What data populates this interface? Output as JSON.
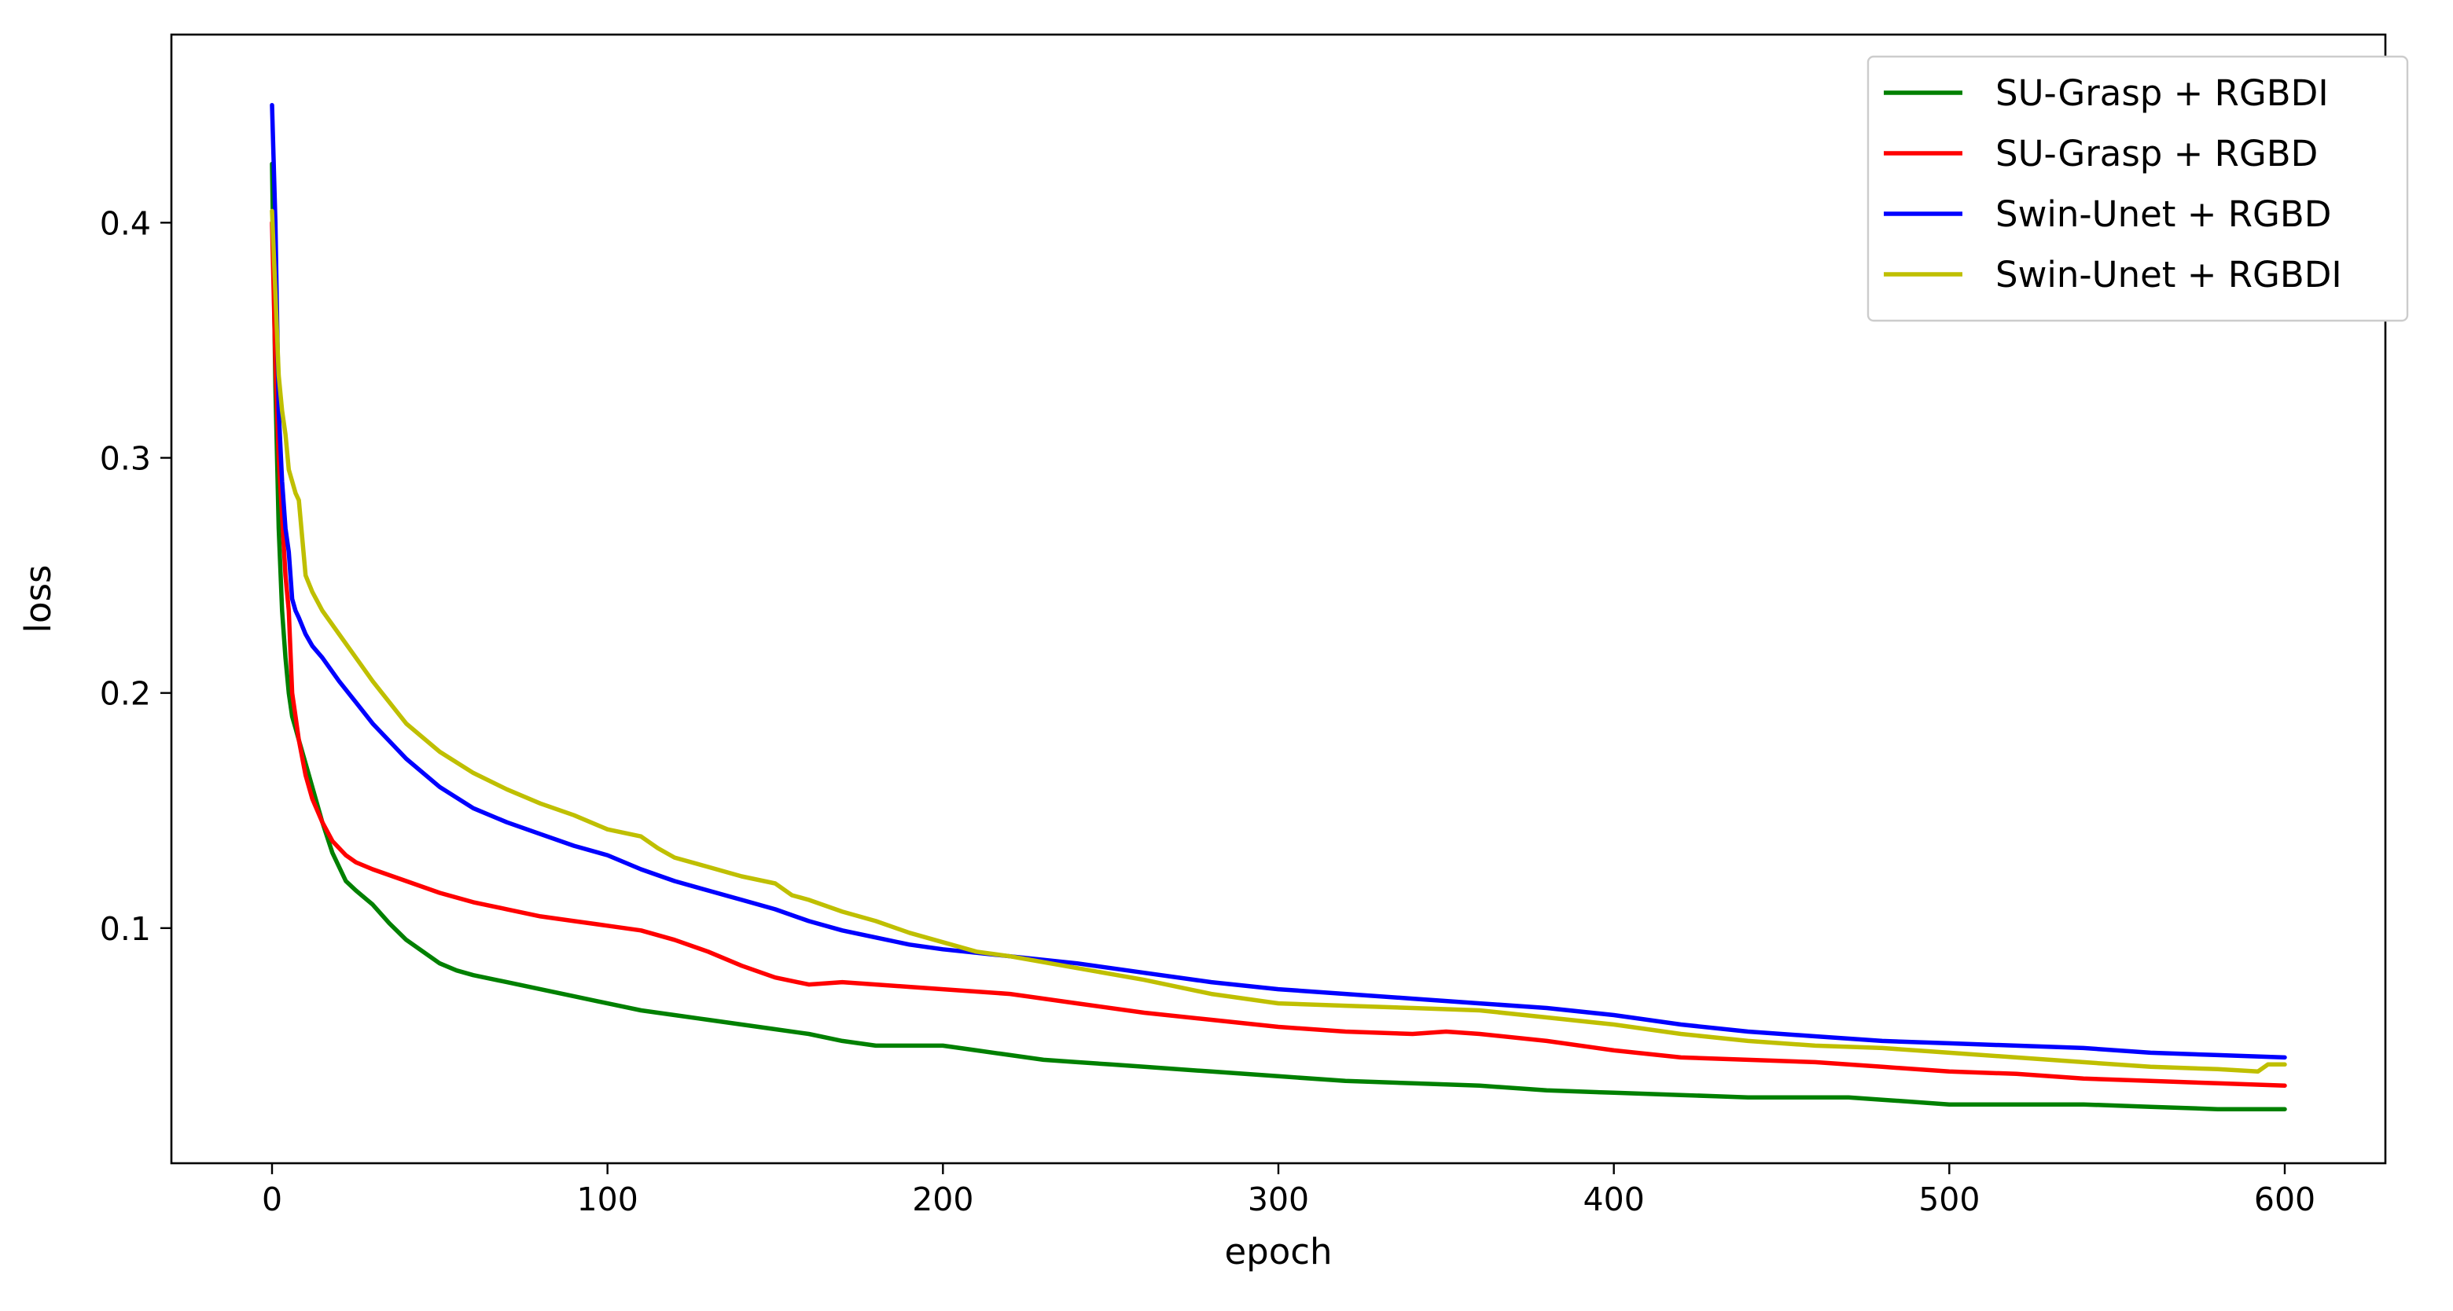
{
  "chart_data": {
    "type": "line",
    "title": "",
    "xlabel": "epoch",
    "ylabel": "loss",
    "xlim": [
      -30,
      630
    ],
    "ylim": [
      0.0,
      0.48
    ],
    "xticks": [
      0,
      100,
      200,
      300,
      400,
      500,
      600
    ],
    "yticks": [
      0.1,
      0.2,
      0.3,
      0.4
    ],
    "grid": false,
    "legend_position": "top-right",
    "series": [
      {
        "name": "SU-Grasp + RGBDI",
        "color": "#008000",
        "x": [
          0,
          1,
          2,
          3,
          4,
          5,
          6,
          7,
          8,
          10,
          12,
          15,
          18,
          22,
          25,
          30,
          35,
          40,
          45,
          50,
          55,
          60,
          70,
          80,
          90,
          100,
          110,
          120,
          130,
          140,
          150,
          160,
          170,
          180,
          190,
          200,
          210,
          220,
          230,
          240,
          250,
          260,
          280,
          300,
          320,
          340,
          360,
          380,
          400,
          420,
          440,
          460,
          470,
          480,
          500,
          520,
          540,
          560,
          580,
          600
        ],
        "y": [
          0.425,
          0.33,
          0.27,
          0.235,
          0.215,
          0.2,
          0.19,
          0.185,
          0.18,
          0.17,
          0.16,
          0.145,
          0.132,
          0.12,
          0.116,
          0.11,
          0.102,
          0.095,
          0.09,
          0.085,
          0.082,
          0.08,
          0.077,
          0.074,
          0.071,
          0.068,
          0.065,
          0.063,
          0.061,
          0.059,
          0.057,
          0.055,
          0.052,
          0.05,
          0.05,
          0.05,
          0.048,
          0.046,
          0.044,
          0.043,
          0.042,
          0.041,
          0.039,
          0.037,
          0.035,
          0.034,
          0.033,
          0.031,
          0.03,
          0.029,
          0.028,
          0.028,
          0.028,
          0.027,
          0.025,
          0.025,
          0.025,
          0.024,
          0.023,
          0.023
        ]
      },
      {
        "name": "SU-Grasp + RGBD",
        "color": "#ff0000",
        "x": [
          0,
          1,
          2,
          3,
          4,
          5,
          6,
          7,
          8,
          10,
          12,
          15,
          18,
          22,
          25,
          30,
          40,
          50,
          60,
          70,
          80,
          90,
          100,
          110,
          120,
          130,
          140,
          150,
          160,
          170,
          180,
          190,
          200,
          220,
          240,
          260,
          280,
          300,
          320,
          340,
          350,
          360,
          380,
          400,
          420,
          440,
          460,
          480,
          500,
          520,
          540,
          560,
          580,
          600
        ],
        "y": [
          0.4,
          0.34,
          0.3,
          0.275,
          0.25,
          0.235,
          0.2,
          0.19,
          0.18,
          0.165,
          0.155,
          0.145,
          0.137,
          0.131,
          0.128,
          0.125,
          0.12,
          0.115,
          0.111,
          0.108,
          0.105,
          0.103,
          0.101,
          0.099,
          0.095,
          0.09,
          0.084,
          0.079,
          0.076,
          0.077,
          0.076,
          0.075,
          0.074,
          0.072,
          0.068,
          0.064,
          0.061,
          0.058,
          0.056,
          0.055,
          0.056,
          0.055,
          0.052,
          0.048,
          0.045,
          0.044,
          0.043,
          0.041,
          0.039,
          0.038,
          0.036,
          0.035,
          0.034,
          0.033
        ]
      },
      {
        "name": "Swin-Unet + RGBD",
        "color": "#0000ff",
        "x": [
          0,
          1,
          2,
          3,
          4,
          5,
          6,
          7,
          8,
          10,
          12,
          15,
          20,
          25,
          30,
          40,
          50,
          60,
          70,
          80,
          90,
          100,
          110,
          120,
          130,
          140,
          150,
          160,
          170,
          180,
          190,
          200,
          220,
          240,
          260,
          280,
          300,
          320,
          340,
          360,
          380,
          400,
          420,
          440,
          460,
          480,
          500,
          520,
          540,
          560,
          580,
          600
        ],
        "y": [
          0.45,
          0.4,
          0.32,
          0.29,
          0.27,
          0.26,
          0.24,
          0.235,
          0.232,
          0.225,
          0.22,
          0.215,
          0.205,
          0.196,
          0.187,
          0.172,
          0.16,
          0.151,
          0.145,
          0.14,
          0.135,
          0.131,
          0.125,
          0.12,
          0.116,
          0.112,
          0.108,
          0.103,
          0.099,
          0.096,
          0.093,
          0.091,
          0.088,
          0.085,
          0.081,
          0.077,
          0.074,
          0.072,
          0.07,
          0.068,
          0.066,
          0.063,
          0.059,
          0.056,
          0.054,
          0.052,
          0.051,
          0.05,
          0.049,
          0.047,
          0.046,
          0.045
        ]
      },
      {
        "name": "Swin-Unet + RGBDI",
        "color": "#bfbf00",
        "x": [
          0,
          1,
          2,
          3,
          4,
          5,
          6,
          7,
          8,
          10,
          12,
          15,
          20,
          25,
          30,
          40,
          50,
          60,
          70,
          80,
          90,
          100,
          110,
          115,
          120,
          130,
          140,
          150,
          155,
          160,
          170,
          180,
          190,
          200,
          210,
          220,
          240,
          260,
          280,
          300,
          320,
          340,
          360,
          380,
          400,
          420,
          440,
          460,
          480,
          500,
          520,
          540,
          560,
          580,
          592,
          595,
          600
        ],
        "y": [
          0.405,
          0.37,
          0.335,
          0.32,
          0.31,
          0.295,
          0.29,
          0.285,
          0.282,
          0.25,
          0.243,
          0.235,
          0.225,
          0.215,
          0.205,
          0.187,
          0.175,
          0.166,
          0.159,
          0.153,
          0.148,
          0.142,
          0.139,
          0.134,
          0.13,
          0.126,
          0.122,
          0.119,
          0.114,
          0.112,
          0.107,
          0.103,
          0.098,
          0.094,
          0.09,
          0.088,
          0.083,
          0.078,
          0.072,
          0.068,
          0.067,
          0.066,
          0.065,
          0.062,
          0.059,
          0.055,
          0.052,
          0.05,
          0.049,
          0.047,
          0.045,
          0.043,
          0.041,
          0.04,
          0.039,
          0.042,
          0.042
        ]
      }
    ]
  }
}
